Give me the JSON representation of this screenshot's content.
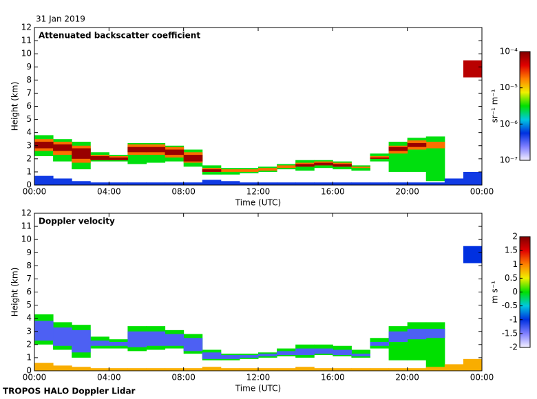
{
  "date": "31 Jan 2019",
  "footer": "TROPOS HALO Doppler Lidar",
  "chart_data": [
    {
      "type": "heatmap",
      "title": "Attenuated backscatter coefficient",
      "xlabel": "Time (UTC)",
      "ylabel": "Height (km)",
      "xlim": [
        0,
        24
      ],
      "xticks": [
        {
          "value": 0,
          "label": "00:00"
        },
        {
          "value": 4,
          "label": "04:00"
        },
        {
          "value": 8,
          "label": "08:00"
        },
        {
          "value": 12,
          "label": "12:00"
        },
        {
          "value": 16,
          "label": "16:00"
        },
        {
          "value": 20,
          "label": "20:00"
        },
        {
          "value": 24,
          "label": "00:00"
        }
      ],
      "ylim": [
        0,
        12
      ],
      "yticks": [
        0,
        1,
        2,
        3,
        4,
        5,
        6,
        7,
        8,
        9,
        10,
        11,
        12
      ],
      "colorbar_label": "sr⁻¹ m⁻¹",
      "clim": [
        1e-07,
        0.0001
      ],
      "clog": true,
      "cticks": [
        {
          "value": 1e-07,
          "label": "10⁻⁷"
        },
        {
          "value": 1e-06,
          "label": "10⁻⁶"
        },
        {
          "value": 1e-05,
          "label": "10⁻⁵"
        },
        {
          "value": 0.0001,
          "label": "10⁻⁴"
        }
      ],
      "colormap": [
        "#f4f0ff",
        "#8080ff",
        "#0030e0",
        "#00c8e0",
        "#00e000",
        "#f0f000",
        "#ff8000",
        "#e00000",
        "#800000"
      ],
      "x": [
        0,
        1,
        2,
        3,
        4,
        5,
        6,
        7,
        8,
        9,
        10,
        11,
        12,
        13,
        14,
        15,
        16,
        17,
        18,
        19,
        20,
        21,
        22,
        23,
        24
      ],
      "layers": [
        {
          "value": 3e-06,
          "top": [
            3.8,
            3.5,
            3.3,
            2.5,
            2.3,
            3.2,
            3.2,
            3.0,
            2.7,
            1.5,
            1.3,
            1.3,
            1.4,
            1.6,
            1.9,
            1.9,
            1.8,
            1.5,
            2.4,
            3.3,
            3.6,
            3.7,
            null,
            null
          ],
          "base": [
            2.2,
            1.8,
            1.2,
            1.8,
            1.8,
            1.6,
            1.7,
            1.8,
            1.4,
            0.8,
            0.8,
            0.9,
            1.0,
            1.2,
            1.1,
            1.3,
            1.2,
            1.1,
            1.8,
            1.0,
            1.0,
            0.3,
            null,
            null
          ]
        },
        {
          "value": 2e-05,
          "top": [
            3.5,
            3.3,
            3.0,
            2.3,
            2.2,
            3.1,
            3.1,
            2.9,
            2.5,
            1.3,
            1.2,
            1.2,
            1.3,
            1.5,
            1.7,
            1.8,
            1.7,
            1.4,
            2.2,
            3.0,
            3.4,
            3.3,
            null,
            null
          ],
          "base": [
            2.6,
            2.3,
            1.7,
            1.9,
            1.9,
            2.3,
            2.3,
            2.1,
            1.7,
            1.0,
            1.0,
            1.0,
            1.1,
            1.3,
            1.4,
            1.5,
            1.4,
            1.3,
            2.0,
            2.4,
            2.7,
            2.8,
            null,
            null
          ]
        },
        {
          "value": 8e-05,
          "top": [
            3.3,
            3.1,
            2.8,
            2.2,
            2.1,
            2.9,
            2.9,
            2.7,
            2.3,
            1.2,
            null,
            null,
            null,
            null,
            1.6,
            1.7,
            1.6,
            null,
            2.1,
            2.9,
            3.2,
            null,
            null,
            null
          ],
          "base": [
            2.8,
            2.6,
            2.0,
            1.9,
            1.9,
            2.5,
            2.5,
            2.3,
            1.8,
            1.0,
            null,
            null,
            null,
            null,
            1.4,
            1.5,
            1.4,
            null,
            2.0,
            2.6,
            2.9,
            null,
            null,
            null
          ]
        },
        {
          "value": 5e-07,
          "top": [
            0.7,
            0.5,
            0.3,
            0.2,
            0.2,
            0.2,
            0.2,
            0.2,
            0.2,
            0.4,
            0.3,
            0.2,
            0.2,
            0.2,
            0.2,
            0.2,
            0.2,
            0.2,
            0.2,
            0.2,
            0.2,
            0.2,
            0.5,
            1.0
          ],
          "base": [
            0,
            0,
            0,
            0,
            0,
            0,
            0,
            0,
            0,
            0,
            0,
            0,
            0,
            0,
            0,
            0,
            0,
            0,
            0,
            0,
            0,
            0,
            0,
            0
          ]
        },
        {
          "value": 6e-05,
          "top": [
            null,
            null,
            null,
            null,
            null,
            null,
            null,
            null,
            null,
            null,
            null,
            null,
            null,
            null,
            null,
            null,
            null,
            null,
            null,
            null,
            null,
            null,
            null,
            9.5
          ],
          "base": [
            null,
            null,
            null,
            null,
            null,
            null,
            null,
            null,
            null,
            null,
            null,
            null,
            null,
            null,
            null,
            null,
            null,
            null,
            null,
            null,
            null,
            null,
            null,
            8.2
          ]
        }
      ]
    },
    {
      "type": "heatmap",
      "title": "Doppler velocity",
      "xlabel": "Time (UTC)",
      "ylabel": "Height (km)",
      "xlim": [
        0,
        24
      ],
      "xticks": [
        {
          "value": 0,
          "label": "00:00"
        },
        {
          "value": 4,
          "label": "04:00"
        },
        {
          "value": 8,
          "label": "08:00"
        },
        {
          "value": 12,
          "label": "12:00"
        },
        {
          "value": 16,
          "label": "16:00"
        },
        {
          "value": 20,
          "label": "20:00"
        },
        {
          "value": 24,
          "label": "00:00"
        }
      ],
      "ylim": [
        0,
        12
      ],
      "yticks": [
        0,
        1,
        2,
        3,
        4,
        5,
        6,
        7,
        8,
        9,
        10,
        11,
        12
      ],
      "colorbar_label": "m s⁻¹",
      "clim": [
        -2,
        2
      ],
      "clog": false,
      "cticks": [
        -2,
        -1.5,
        -1,
        -0.5,
        0,
        0.5,
        1,
        1.5,
        2
      ],
      "colormap": [
        "#f4f0ff",
        "#8080ff",
        "#0030e0",
        "#00c8e0",
        "#00e000",
        "#f0f000",
        "#ff8000",
        "#e00000",
        "#800000"
      ],
      "x": [
        0,
        1,
        2,
        3,
        4,
        5,
        6,
        7,
        8,
        9,
        10,
        11,
        12,
        13,
        14,
        15,
        16,
        17,
        18,
        19,
        20,
        21,
        22,
        23,
        24
      ],
      "layers": [
        {
          "value": 0,
          "top": [
            4.3,
            3.7,
            3.5,
            2.6,
            2.4,
            3.4,
            3.4,
            3.1,
            2.8,
            1.6,
            1.3,
            1.3,
            1.4,
            1.7,
            2.0,
            2.0,
            1.9,
            1.6,
            2.5,
            3.4,
            3.7,
            3.7,
            null,
            null
          ],
          "base": [
            2.0,
            1.6,
            1.0,
            1.7,
            1.7,
            1.5,
            1.6,
            1.7,
            1.3,
            0.8,
            0.8,
            0.9,
            1.0,
            1.1,
            1.0,
            1.2,
            1.1,
            1.0,
            1.7,
            0.8,
            0.8,
            0.2,
            null,
            null
          ]
        },
        {
          "value": -1.3,
          "top": [
            3.8,
            3.3,
            3.1,
            2.3,
            2.2,
            3.0,
            3.0,
            2.8,
            2.5,
            1.4,
            1.2,
            1.2,
            1.3,
            1.5,
            1.7,
            1.7,
            1.6,
            1.3,
            2.2,
            3.0,
            3.2,
            3.2,
            null,
            null
          ],
          "base": [
            2.3,
            1.9,
            1.4,
            1.9,
            1.9,
            1.8,
            1.9,
            1.9,
            1.5,
            0.9,
            0.9,
            1.0,
            1.1,
            1.2,
            1.2,
            1.3,
            1.2,
            1.1,
            1.9,
            2.2,
            2.4,
            2.5,
            null,
            null
          ]
        },
        {
          "value": 0.8,
          "top": [
            0.6,
            0.4,
            0.3,
            0.2,
            0.2,
            0.2,
            0.2,
            0.2,
            0.2,
            0.3,
            0.2,
            0.2,
            0.2,
            0.2,
            0.3,
            0.2,
            0.2,
            0.2,
            0.2,
            0.2,
            0.2,
            0.3,
            0.5,
            0.9
          ],
          "base": [
            0,
            0,
            0,
            0,
            0,
            0,
            0,
            0,
            0,
            0,
            0,
            0,
            0,
            0,
            0,
            0,
            0,
            0,
            0,
            0,
            0,
            0,
            0,
            0
          ]
        },
        {
          "value": -1,
          "top": [
            null,
            null,
            null,
            null,
            null,
            null,
            null,
            null,
            null,
            null,
            null,
            null,
            null,
            null,
            null,
            null,
            null,
            null,
            null,
            null,
            null,
            null,
            null,
            9.5
          ],
          "base": [
            null,
            null,
            null,
            null,
            null,
            null,
            null,
            null,
            null,
            null,
            null,
            null,
            null,
            null,
            null,
            null,
            null,
            null,
            null,
            null,
            null,
            null,
            null,
            8.2
          ]
        }
      ]
    }
  ]
}
